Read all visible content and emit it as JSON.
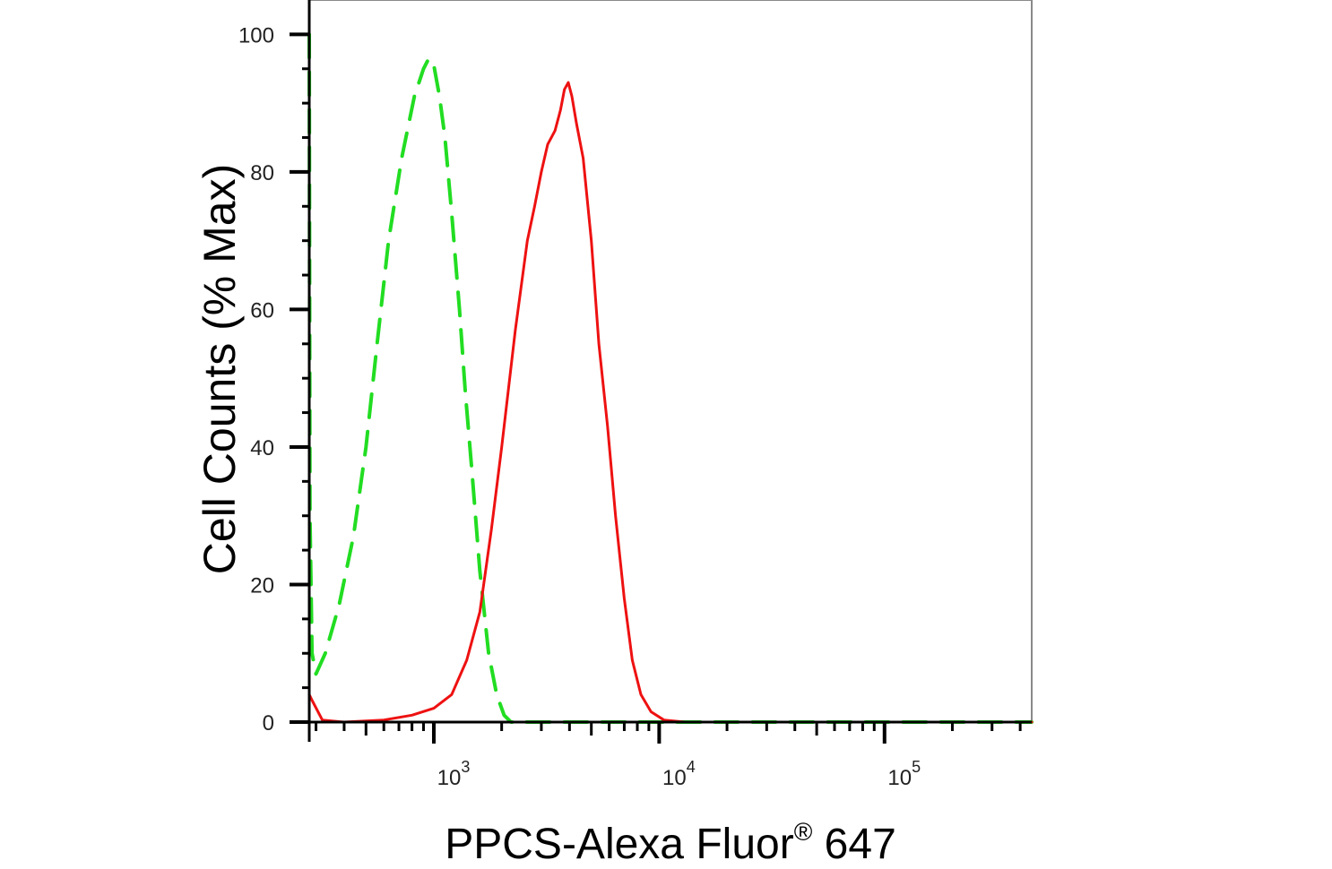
{
  "chart_data": {
    "type": "line",
    "title": "",
    "xlabel": "PPCS-Alexa Fluor® 647",
    "xlabel_parts": {
      "main": "PPCS-Alexa Fluor",
      "sup": "®",
      "tail": " 647"
    },
    "ylabel": "Cell Counts (% Max)",
    "x_scale": "log",
    "xlim": [
      280,
      450000
    ],
    "ylim": [
      0,
      105
    ],
    "yticks": [
      {
        "value": 0,
        "label": "0"
      },
      {
        "value": 20,
        "label": "20"
      },
      {
        "value": 40,
        "label": "40"
      },
      {
        "value": 60,
        "label": "60"
      },
      {
        "value": 80,
        "label": "80"
      },
      {
        "value": 100,
        "label": "100"
      }
    ],
    "xticks": [
      {
        "value": 1000,
        "base": "10",
        "exp": "3"
      },
      {
        "value": 10000,
        "base": "10",
        "exp": "4"
      },
      {
        "value": 100000,
        "base": "10",
        "exp": "5"
      }
    ],
    "grid": false,
    "legend": "none",
    "series": [
      {
        "color": "#22dd22",
        "style": "dashed",
        "points": [
          [
            280,
            100
          ],
          [
            282,
            30
          ],
          [
            288,
            10
          ],
          [
            300,
            7
          ],
          [
            330,
            10
          ],
          [
            380,
            17
          ],
          [
            440,
            27
          ],
          [
            500,
            40
          ],
          [
            560,
            55
          ],
          [
            630,
            70
          ],
          [
            720,
            82
          ],
          [
            820,
            91
          ],
          [
            900,
            95
          ],
          [
            950,
            96.5
          ],
          [
            1000,
            95.5
          ],
          [
            1060,
            91
          ],
          [
            1120,
            85
          ],
          [
            1200,
            74
          ],
          [
            1300,
            60
          ],
          [
            1380,
            48
          ],
          [
            1480,
            36
          ],
          [
            1600,
            22
          ],
          [
            1750,
            10
          ],
          [
            1900,
            4
          ],
          [
            2050,
            1
          ],
          [
            2200,
            0
          ],
          [
            450000,
            0
          ]
        ]
      },
      {
        "color": "#ee1111",
        "style": "solid",
        "points": [
          [
            280,
            4
          ],
          [
            290,
            3
          ],
          [
            320,
            0.3
          ],
          [
            400,
            0
          ],
          [
            600,
            0.3
          ],
          [
            800,
            1
          ],
          [
            1000,
            2
          ],
          [
            1200,
            4
          ],
          [
            1400,
            9
          ],
          [
            1600,
            16
          ],
          [
            1800,
            28
          ],
          [
            2000,
            40
          ],
          [
            2300,
            57
          ],
          [
            2600,
            70
          ],
          [
            2800,
            75
          ],
          [
            3000,
            80
          ],
          [
            3200,
            84
          ],
          [
            3450,
            86
          ],
          [
            3650,
            89
          ],
          [
            3800,
            92
          ],
          [
            3950,
            93
          ],
          [
            4100,
            91
          ],
          [
            4300,
            87
          ],
          [
            4600,
            82
          ],
          [
            5000,
            70
          ],
          [
            5400,
            55
          ],
          [
            5900,
            43
          ],
          [
            6400,
            30
          ],
          [
            7000,
            18
          ],
          [
            7600,
            9
          ],
          [
            8300,
            4
          ],
          [
            9200,
            1.5
          ],
          [
            10500,
            0.3
          ],
          [
            13000,
            0
          ],
          [
            450000,
            0
          ]
        ]
      }
    ]
  }
}
